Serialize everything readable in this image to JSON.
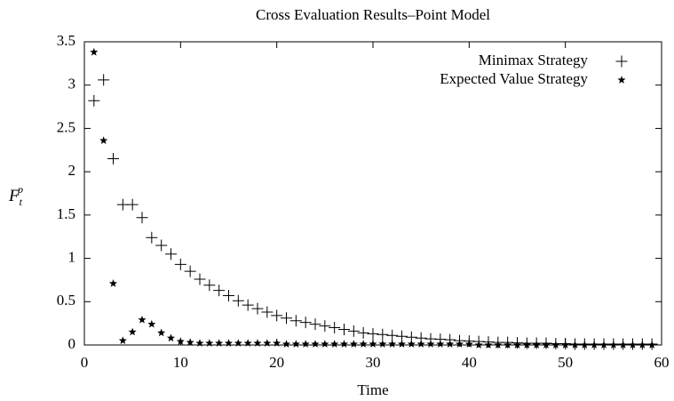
{
  "chart_data": {
    "type": "scatter",
    "title": "Cross Evaluation Results–Point Model",
    "x_label": "Time",
    "y_label": {
      "base": "F",
      "sub": "t",
      "sup": "p"
    },
    "x": [
      1,
      2,
      3,
      4,
      5,
      6,
      7,
      8,
      9,
      10,
      11,
      12,
      13,
      14,
      15,
      16,
      17,
      18,
      19,
      20,
      21,
      22,
      23,
      24,
      25,
      26,
      27,
      28,
      29,
      30,
      31,
      32,
      33,
      34,
      35,
      36,
      37,
      38,
      39,
      40,
      41,
      42,
      43,
      44,
      45,
      46,
      47,
      48,
      49,
      50,
      51,
      52,
      53,
      54,
      55,
      56,
      57,
      58,
      59
    ],
    "series": [
      {
        "name": "Minimax Strategy",
        "marker": "plus",
        "color": "#000000",
        "values": [
          2.82,
          3.06,
          2.15,
          1.62,
          1.62,
          1.47,
          1.24,
          1.15,
          1.05,
          0.93,
          0.85,
          0.76,
          0.69,
          0.63,
          0.57,
          0.51,
          0.46,
          0.42,
          0.38,
          0.34,
          0.31,
          0.28,
          0.26,
          0.24,
          0.22,
          0.2,
          0.18,
          0.16,
          0.14,
          0.13,
          0.12,
          0.11,
          0.1,
          0.09,
          0.08,
          0.07,
          0.065,
          0.06,
          0.05,
          0.045,
          0.04,
          0.035,
          0.03,
          0.03,
          0.025,
          0.02,
          0.02,
          0.02,
          0.015,
          0.015,
          0.01,
          0.01,
          0.01,
          0.01,
          0.01,
          0.01,
          0.01,
          0.01,
          0.01
        ]
      },
      {
        "name": "Expected Value Strategy",
        "marker": "star",
        "color": "#000000",
        "values": [
          3.38,
          2.36,
          0.71,
          0.05,
          0.15,
          0.29,
          0.24,
          0.14,
          0.08,
          0.04,
          0.03,
          0.02,
          0.02,
          0.02,
          0.02,
          0.02,
          0.02,
          0.02,
          0.02,
          0.02,
          0.01,
          0.01,
          0.01,
          0.01,
          0.01,
          0.01,
          0.01,
          0.01,
          0.01,
          0.01,
          0.01,
          0.01,
          0.01,
          0.01,
          0.01,
          0.01,
          0.01,
          0.01,
          0.01,
          0.01,
          0,
          0,
          0,
          0,
          0,
          0,
          0,
          0,
          0,
          0,
          0,
          0,
          0,
          0,
          0,
          0,
          0,
          0,
          0
        ]
      }
    ],
    "xlim": [
      0,
      60
    ],
    "xticks": [
      0,
      10,
      20,
      30,
      40,
      50,
      60
    ],
    "ylim": [
      0,
      3.5
    ],
    "yticks": [
      0,
      0.5,
      1,
      1.5,
      2,
      2.5,
      3,
      3.5
    ],
    "legend": "upper right",
    "grid": false
  }
}
